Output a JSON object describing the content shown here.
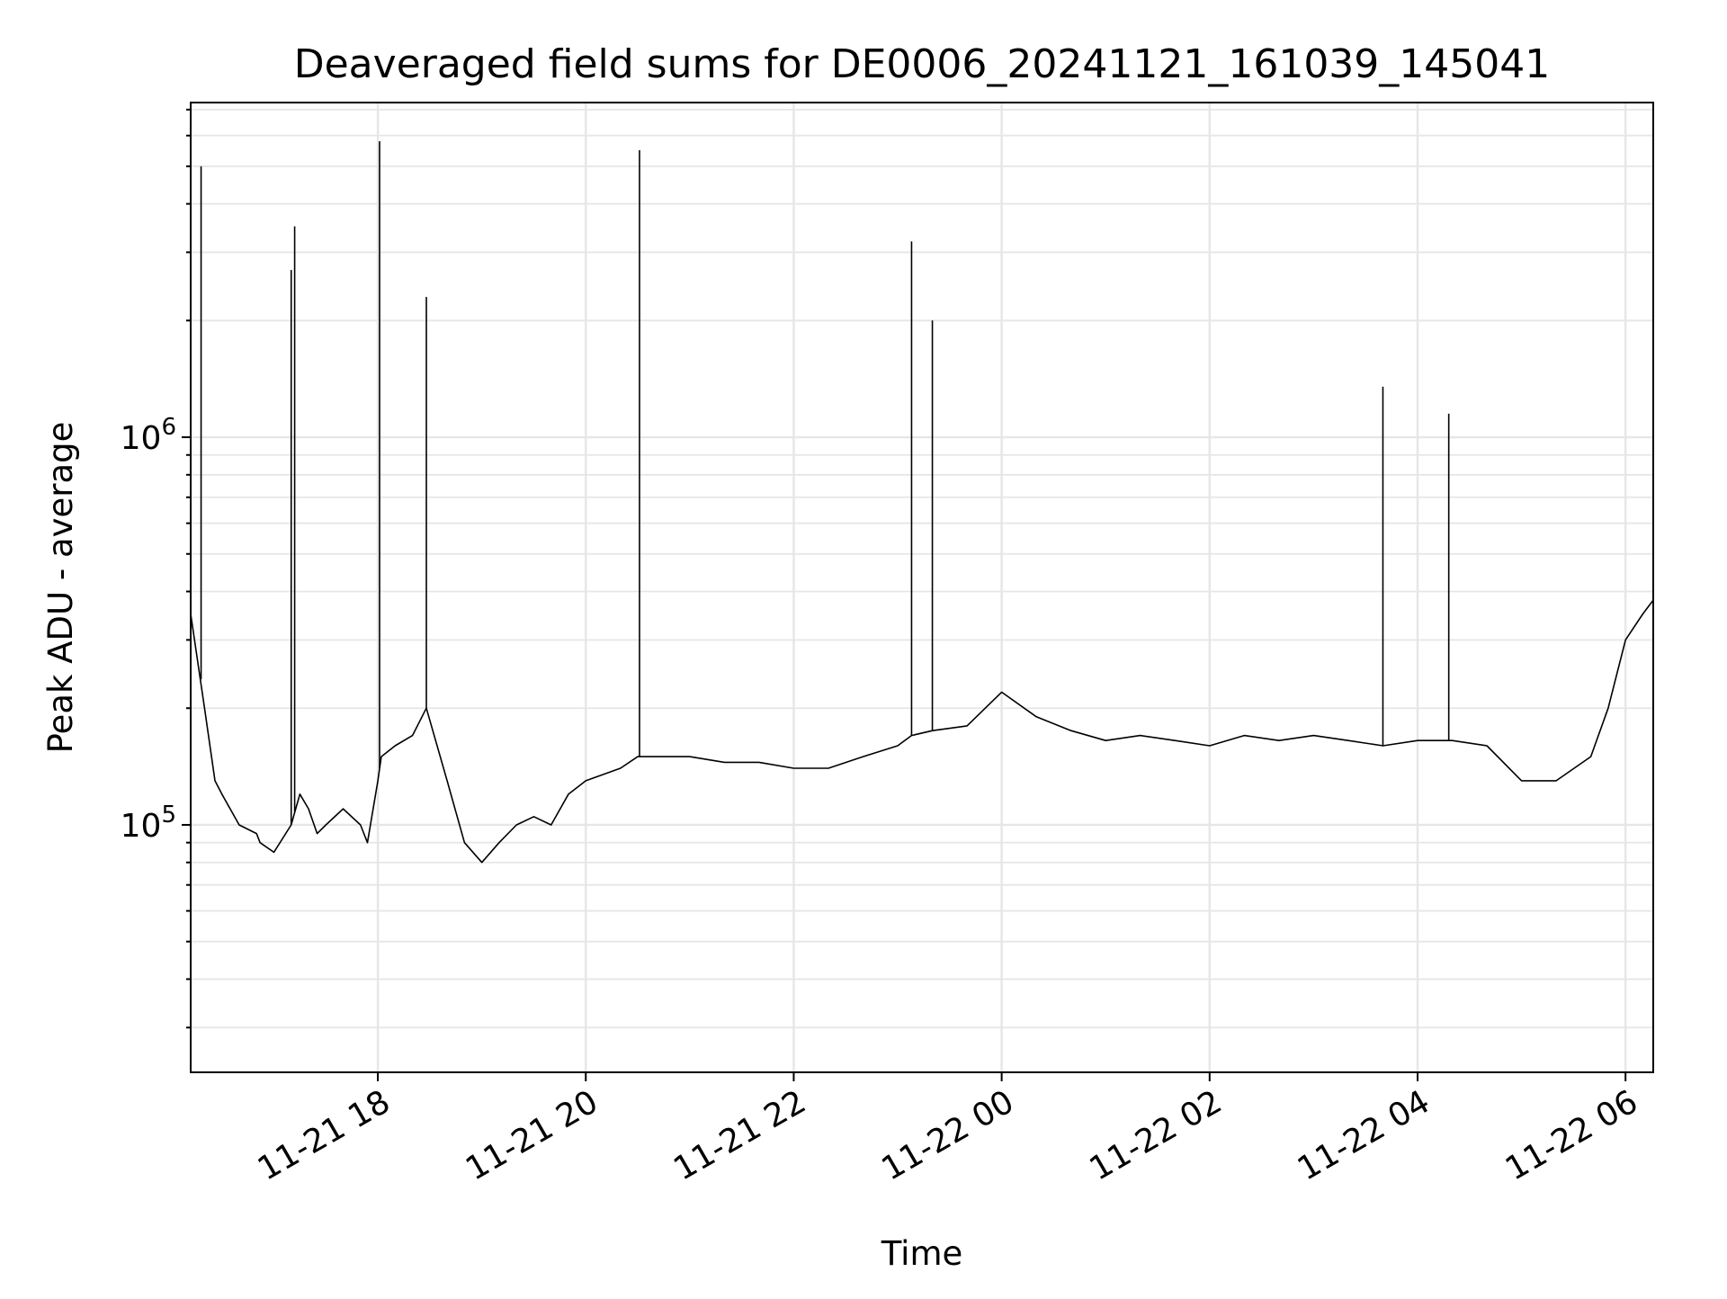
{
  "chart_data": {
    "type": "line",
    "title": "Deaveraged field sums for DE0006_20241121_161039_145041",
    "xlabel": "Time",
    "ylabel": "Peak ADU - average",
    "y_scale": "log",
    "grid": true,
    "legend": "none",
    "line_color": "#000000",
    "xlim": [
      "2024-11-21 16:12",
      "2024-11-22 06:16"
    ],
    "ylim": [
      23000,
      7300000
    ],
    "x_ticks": [
      {
        "value": "2024-11-21 18:00",
        "label": "11-21 18"
      },
      {
        "value": "2024-11-21 20:00",
        "label": "11-21 20"
      },
      {
        "value": "2024-11-21 22:00",
        "label": "11-21 22"
      },
      {
        "value": "2024-11-22 00:00",
        "label": "11-22 00"
      },
      {
        "value": "2024-11-22 02:00",
        "label": "11-22 02"
      },
      {
        "value": "2024-11-22 04:00",
        "label": "11-22 04"
      },
      {
        "value": "2024-11-22 06:00",
        "label": "11-22 06"
      }
    ],
    "y_ticks": [
      {
        "value": 100000,
        "base": "10",
        "exp": "5"
      },
      {
        "value": 1000000,
        "base": "10",
        "exp": "6"
      }
    ],
    "series": [
      {
        "x": [
          "2024-11-21 16:12",
          "2024-11-21 16:20",
          "2024-11-21 16:26",
          "2024-11-21 16:30",
          "2024-11-21 16:40",
          "2024-11-21 16:50",
          "2024-11-21 16:52",
          "2024-11-21 17:00",
          "2024-11-21 17:10",
          "2024-11-21 17:15",
          "2024-11-21 17:20",
          "2024-11-21 17:25",
          "2024-11-21 17:30",
          "2024-11-21 17:40",
          "2024-11-21 17:50",
          "2024-11-21 17:54",
          "2024-11-21 18:00",
          "2024-11-21 18:02",
          "2024-11-21 18:10",
          "2024-11-21 18:20",
          "2024-11-21 18:28",
          "2024-11-21 18:40",
          "2024-11-21 18:50",
          "2024-11-21 19:00",
          "2024-11-21 19:10",
          "2024-11-21 19:20",
          "2024-11-21 19:30",
          "2024-11-21 19:40",
          "2024-11-21 19:50",
          "2024-11-21 20:00",
          "2024-11-21 20:20",
          "2024-11-21 20:30",
          "2024-11-21 20:31",
          "2024-11-21 20:40",
          "2024-11-21 21:00",
          "2024-11-21 21:20",
          "2024-11-21 21:40",
          "2024-11-21 22:00",
          "2024-11-21 22:20",
          "2024-11-21 22:40",
          "2024-11-21 23:00",
          "2024-11-21 23:08",
          "2024-11-21 23:20",
          "2024-11-21 23:40",
          "2024-11-22 00:00",
          "2024-11-22 00:20",
          "2024-11-22 00:40",
          "2024-11-22 01:00",
          "2024-11-22 01:20",
          "2024-11-22 01:40",
          "2024-11-22 02:00",
          "2024-11-22 02:20",
          "2024-11-22 02:40",
          "2024-11-22 03:00",
          "2024-11-22 03:20",
          "2024-11-22 03:40",
          "2024-11-22 04:00",
          "2024-11-22 04:20",
          "2024-11-22 04:40",
          "2024-11-22 05:00",
          "2024-11-22 05:20",
          "2024-11-22 05:40",
          "2024-11-22 05:50",
          "2024-11-22 06:00",
          "2024-11-22 06:10",
          "2024-11-22 06:16"
        ],
        "y": [
          350000,
          200000,
          130000,
          120000,
          100000,
          95000,
          90000,
          85000,
          100000,
          120000,
          110000,
          95000,
          100000,
          110000,
          100000,
          90000,
          130000,
          150000,
          160000,
          170000,
          200000,
          130000,
          90000,
          80000,
          90000,
          100000,
          105000,
          100000,
          120000,
          130000,
          140000,
          150000,
          150000,
          150000,
          150000,
          145000,
          145000,
          140000,
          140000,
          150000,
          160000,
          170000,
          175000,
          180000,
          220000,
          190000,
          175000,
          165000,
          170000,
          165000,
          160000,
          170000,
          165000,
          170000,
          165000,
          160000,
          165000,
          165000,
          160000,
          130000,
          130000,
          150000,
          200000,
          300000,
          350000,
          380000
        ],
        "spikes": [
          {
            "x": "2024-11-21 16:18",
            "y": 5000000
          },
          {
            "x": "2024-11-21 17:10",
            "y": 2700000
          },
          {
            "x": "2024-11-21 17:12",
            "y": 3500000
          },
          {
            "x": "2024-11-21 18:01",
            "y": 5800000
          },
          {
            "x": "2024-11-21 18:28",
            "y": 2300000
          },
          {
            "x": "2024-11-21 20:31",
            "y": 5500000
          },
          {
            "x": "2024-11-21 23:08",
            "y": 3200000
          },
          {
            "x": "2024-11-21 23:20",
            "y": 2000000
          },
          {
            "x": "2024-11-22 03:40",
            "y": 1350000
          },
          {
            "x": "2024-11-22 04:18",
            "y": 1150000
          }
        ]
      }
    ]
  }
}
